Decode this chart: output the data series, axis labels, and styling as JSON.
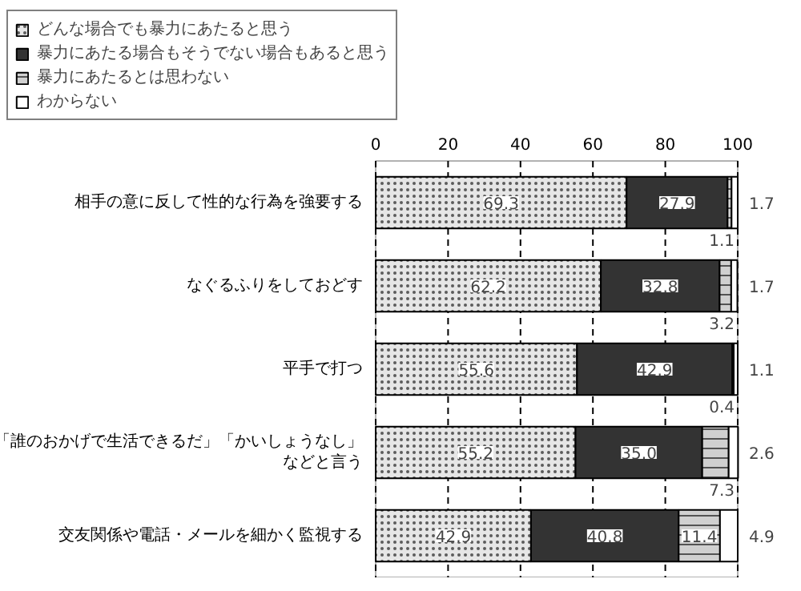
{
  "chart_data": {
    "type": "bar",
    "orientation": "horizontal",
    "stacked": true,
    "categories": [
      "相手の意に反して性的な行為を強要する",
      "なぐるふりをしておどす",
      "平手で打つ",
      "「誰のおかげで生活できるだ」「かいしょうなし」などと言う",
      "交友関係や電話・メールを細かく監視する"
    ],
    "series": [
      {
        "name": "どんな場合でも暴力にあたると思う",
        "color": "#e6e6e6",
        "values": [
          69.3,
          62.2,
          55.6,
          55.2,
          42.9
        ],
        "value_labels": [
          "69.3",
          "62.2",
          "55.6",
          "55.2",
          "42.9"
        ]
      },
      {
        "name": "暴力にあたる場合もそうでない場合もあると思う",
        "color": "#333333",
        "values": [
          27.9,
          32.8,
          42.9,
          35.0,
          40.8
        ],
        "value_labels": [
          "27.9",
          "32.8",
          "42.9",
          "35.0",
          "40.8"
        ]
      },
      {
        "name": "暴力にあたるとは思わない",
        "color": "#d0d0d0",
        "values": [
          1.1,
          3.2,
          0.4,
          7.3,
          11.4
        ],
        "value_labels": [
          "1.1",
          "3.2",
          "0.4",
          "7.3",
          "11.4"
        ]
      },
      {
        "name": "わからない",
        "color": "#ffffff",
        "values": [
          1.7,
          1.7,
          1.1,
          2.6,
          4.9
        ],
        "value_labels": [
          "1.7",
          "1.7",
          "1.1",
          "2.6",
          "4.9"
        ]
      }
    ],
    "xlim": [
      0,
      100
    ],
    "xticks": [
      0,
      20,
      40,
      60,
      80,
      100
    ],
    "grid": "x",
    "legend": "top"
  }
}
